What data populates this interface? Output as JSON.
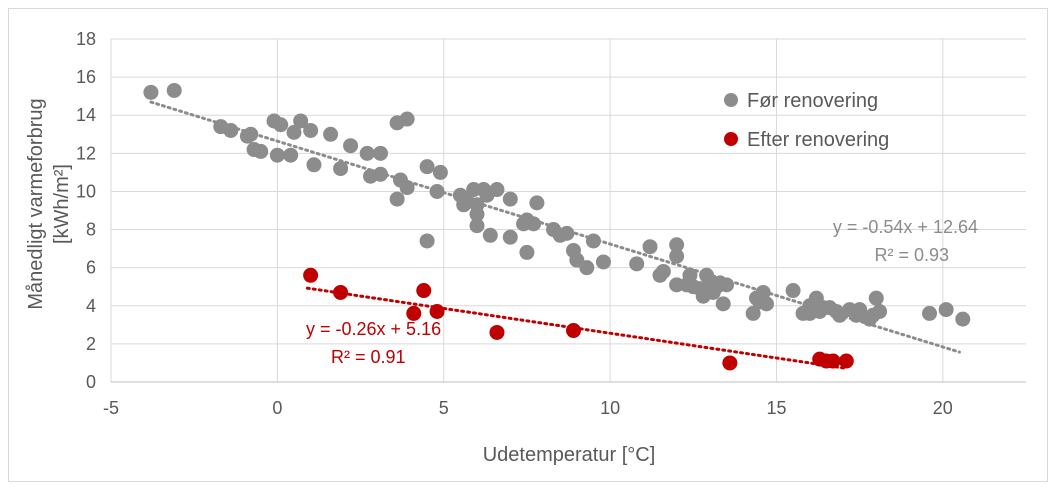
{
  "chart_data": {
    "type": "scatter",
    "xlabel": "Udetemperatur [°C]",
    "ylabel_line1": "Månedligt varmeforbrug",
    "ylabel_line2": "[kWh/m²]",
    "xlim": [
      -5,
      22.5
    ],
    "ylim": [
      0,
      18
    ],
    "xticks": [
      -5,
      0,
      5,
      10,
      15,
      20
    ],
    "yticks": [
      0,
      2,
      4,
      6,
      8,
      10,
      12,
      14,
      16,
      18
    ],
    "grid": true,
    "legend_position": "top-right",
    "series": [
      {
        "name": "Før renovering",
        "color": "#8c8c8c",
        "trendline": {
          "slope": -0.54,
          "intercept": 12.64,
          "x_range": [
            -3.8,
            20.5
          ],
          "equation": "y = -0.54x + 12.64",
          "r2": "R² = 0.93"
        },
        "points": [
          [
            -3.8,
            15.2
          ],
          [
            -3.1,
            15.3
          ],
          [
            -1.7,
            13.4
          ],
          [
            -1.4,
            13.2
          ],
          [
            -0.9,
            12.9
          ],
          [
            -0.8,
            13.0
          ],
          [
            -0.7,
            12.2
          ],
          [
            -0.5,
            12.1
          ],
          [
            -0.1,
            13.7
          ],
          [
            0.0,
            11.9
          ],
          [
            0.1,
            13.5
          ],
          [
            0.4,
            11.9
          ],
          [
            0.5,
            13.1
          ],
          [
            0.7,
            13.7
          ],
          [
            1.0,
            13.2
          ],
          [
            1.1,
            11.4
          ],
          [
            1.6,
            13.0
          ],
          [
            1.9,
            11.2
          ],
          [
            2.2,
            12.4
          ],
          [
            2.7,
            12.0
          ],
          [
            2.8,
            10.8
          ],
          [
            3.1,
            12.0
          ],
          [
            3.1,
            10.9
          ],
          [
            3.6,
            13.6
          ],
          [
            3.6,
            9.6
          ],
          [
            3.7,
            10.6
          ],
          [
            3.9,
            13.8
          ],
          [
            3.9,
            10.2
          ],
          [
            4.5,
            11.3
          ],
          [
            4.5,
            7.4
          ],
          [
            4.8,
            10.0
          ],
          [
            4.9,
            11.0
          ],
          [
            5.5,
            9.8
          ],
          [
            5.6,
            9.3
          ],
          [
            5.7,
            9.5
          ],
          [
            5.9,
            10.1
          ],
          [
            6.0,
            9.3
          ],
          [
            6.0,
            8.8
          ],
          [
            6.0,
            8.2
          ],
          [
            6.2,
            10.1
          ],
          [
            6.3,
            9.8
          ],
          [
            6.4,
            7.7
          ],
          [
            6.6,
            10.1
          ],
          [
            7.0,
            9.6
          ],
          [
            7.0,
            7.6
          ],
          [
            7.4,
            8.3
          ],
          [
            7.5,
            6.8
          ],
          [
            7.5,
            8.5
          ],
          [
            7.7,
            8.3
          ],
          [
            7.8,
            9.4
          ],
          [
            8.3,
            8.0
          ],
          [
            8.5,
            7.7
          ],
          [
            8.7,
            7.8
          ],
          [
            8.9,
            6.9
          ],
          [
            9.0,
            6.4
          ],
          [
            9.3,
            6.0
          ],
          [
            9.5,
            7.4
          ],
          [
            9.8,
            6.3
          ],
          [
            10.8,
            6.2
          ],
          [
            11.2,
            7.1
          ],
          [
            11.5,
            5.6
          ],
          [
            11.6,
            5.8
          ],
          [
            12.0,
            7.2
          ],
          [
            12.0,
            6.6
          ],
          [
            12.0,
            5.1
          ],
          [
            12.3,
            5.1
          ],
          [
            12.4,
            5.6
          ],
          [
            12.5,
            5.0
          ],
          [
            12.7,
            4.9
          ],
          [
            12.8,
            4.5
          ],
          [
            12.9,
            5.6
          ],
          [
            13.0,
            5.2
          ],
          [
            13.1,
            4.7
          ],
          [
            13.2,
            5.0
          ],
          [
            13.3,
            5.2
          ],
          [
            13.4,
            4.1
          ],
          [
            13.5,
            5.1
          ],
          [
            14.3,
            3.6
          ],
          [
            14.4,
            4.4
          ],
          [
            14.5,
            4.2
          ],
          [
            14.6,
            4.7
          ],
          [
            14.7,
            4.1
          ],
          [
            15.5,
            4.8
          ],
          [
            15.8,
            3.6
          ],
          [
            16.0,
            4.0
          ],
          [
            16.0,
            3.6
          ],
          [
            16.2,
            4.4
          ],
          [
            16.3,
            3.7
          ],
          [
            16.4,
            3.9
          ],
          [
            16.6,
            3.9
          ],
          [
            16.8,
            3.7
          ],
          [
            16.9,
            3.5
          ],
          [
            17.2,
            3.8
          ],
          [
            17.4,
            3.5
          ],
          [
            17.5,
            3.8
          ],
          [
            17.8,
            3.3
          ],
          [
            17.9,
            3.5
          ],
          [
            18.0,
            4.4
          ],
          [
            18.1,
            3.7
          ],
          [
            19.6,
            3.6
          ],
          [
            20.1,
            3.8
          ],
          [
            20.6,
            3.3
          ]
        ]
      },
      {
        "name": "Efter renovering",
        "color": "#c00000",
        "trendline": {
          "slope": -0.26,
          "intercept": 5.16,
          "x_range": [
            0.9,
            17.1
          ],
          "equation": "y = -0.26x + 5.16",
          "r2": "R² = 0.91"
        },
        "points": [
          [
            1.0,
            5.6
          ],
          [
            1.9,
            4.7
          ],
          [
            4.1,
            3.6
          ],
          [
            4.4,
            4.8
          ],
          [
            4.8,
            3.7
          ],
          [
            6.6,
            2.6
          ],
          [
            8.9,
            2.7
          ],
          [
            13.6,
            1.0
          ],
          [
            16.3,
            1.2
          ],
          [
            16.5,
            1.1
          ],
          [
            16.7,
            1.1
          ],
          [
            17.1,
            1.1
          ]
        ]
      }
    ]
  }
}
